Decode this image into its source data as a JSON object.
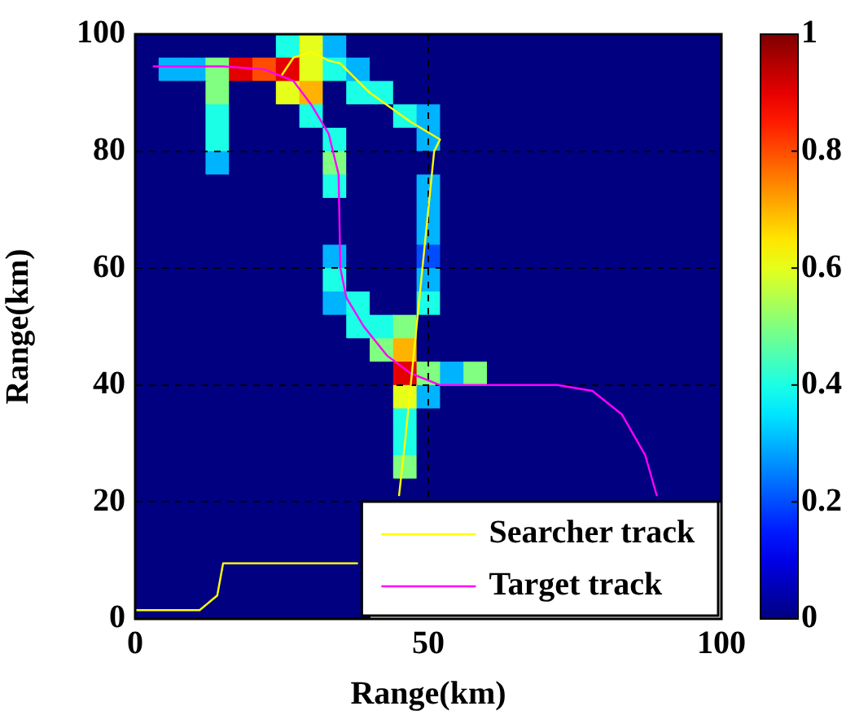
{
  "chart_data": {
    "type": "heatmap",
    "xlabel": "Range(km)",
    "ylabel": "Range(km)",
    "x": [
      2,
      6,
      10,
      14,
      18,
      22,
      26,
      30,
      34,
      38,
      42,
      46,
      50,
      54,
      58,
      62,
      66,
      70,
      74,
      78,
      82,
      86,
      90,
      94,
      98
    ],
    "y": [
      98,
      94,
      90,
      86,
      82,
      78,
      74,
      70,
      66,
      62,
      58,
      54,
      50,
      46,
      42,
      38,
      34,
      30,
      26,
      22,
      18,
      14,
      10,
      6,
      2
    ],
    "cells": [
      [
        0,
        0,
        0,
        0,
        0,
        0,
        0.4,
        0.6,
        0.3,
        0,
        0,
        0,
        0,
        0,
        0,
        0,
        0,
        0,
        0,
        0,
        0,
        0,
        0,
        0,
        0
      ],
      [
        0,
        0.3,
        0.3,
        0.5,
        0.9,
        0.8,
        0.9,
        0.6,
        0.4,
        0.3,
        0,
        0,
        0,
        0,
        0,
        0,
        0,
        0,
        0,
        0,
        0,
        0,
        0,
        0,
        0
      ],
      [
        0,
        0,
        0,
        0.5,
        0,
        0,
        0.6,
        0.7,
        0,
        0.4,
        0.4,
        0,
        0,
        0,
        0,
        0,
        0,
        0,
        0,
        0,
        0,
        0,
        0,
        0,
        0
      ],
      [
        0,
        0,
        0,
        0.4,
        0,
        0,
        0,
        0.4,
        0,
        0,
        0,
        0.4,
        0.3,
        0,
        0,
        0,
        0,
        0,
        0,
        0,
        0,
        0,
        0,
        0,
        0
      ],
      [
        0,
        0,
        0,
        0.4,
        0,
        0,
        0,
        0,
        0.4,
        0,
        0,
        0,
        0.3,
        0,
        0,
        0,
        0,
        0,
        0,
        0,
        0,
        0,
        0,
        0,
        0
      ],
      [
        0,
        0,
        0,
        0.3,
        0,
        0,
        0,
        0,
        0.5,
        0,
        0,
        0,
        0,
        0,
        0,
        0,
        0,
        0,
        0,
        0,
        0,
        0,
        0,
        0,
        0
      ],
      [
        0,
        0,
        0,
        0,
        0,
        0,
        0,
        0,
        0.4,
        0,
        0,
        0,
        0.3,
        0,
        0,
        0,
        0,
        0,
        0,
        0,
        0,
        0,
        0,
        0,
        0
      ],
      [
        0,
        0,
        0,
        0,
        0,
        0,
        0,
        0,
        0,
        0,
        0,
        0,
        0.3,
        0,
        0,
        0,
        0,
        0,
        0,
        0,
        0,
        0,
        0,
        0,
        0
      ],
      [
        0,
        0,
        0,
        0,
        0,
        0,
        0,
        0,
        0,
        0,
        0,
        0,
        0.3,
        0,
        0,
        0,
        0,
        0,
        0,
        0,
        0,
        0,
        0,
        0,
        0
      ],
      [
        0,
        0,
        0,
        0,
        0,
        0,
        0,
        0,
        0.3,
        0,
        0,
        0,
        0.2,
        0,
        0,
        0,
        0,
        0,
        0,
        0,
        0,
        0,
        0,
        0,
        0
      ],
      [
        0,
        0,
        0,
        0,
        0,
        0,
        0,
        0,
        0.4,
        0,
        0,
        0,
        0.3,
        0,
        0,
        0,
        0,
        0,
        0,
        0,
        0,
        0,
        0,
        0,
        0
      ],
      [
        0,
        0,
        0,
        0,
        0,
        0,
        0,
        0,
        0.3,
        0.4,
        0,
        0,
        0.4,
        0,
        0,
        0,
        0,
        0,
        0,
        0,
        0,
        0,
        0,
        0,
        0
      ],
      [
        0,
        0,
        0,
        0,
        0,
        0,
        0,
        0,
        0,
        0.4,
        0.4,
        0.5,
        0,
        0,
        0,
        0,
        0,
        0,
        0,
        0,
        0,
        0,
        0,
        0,
        0
      ],
      [
        0,
        0,
        0,
        0,
        0,
        0,
        0,
        0,
        0,
        0,
        0.5,
        0.7,
        0,
        0,
        0,
        0,
        0,
        0,
        0,
        0,
        0,
        0,
        0,
        0,
        0
      ],
      [
        0,
        0,
        0,
        0,
        0,
        0,
        0,
        0,
        0,
        0,
        0,
        0.9,
        0.5,
        0.3,
        0.5,
        0,
        0,
        0,
        0,
        0,
        0,
        0,
        0,
        0,
        0
      ],
      [
        0,
        0,
        0,
        0,
        0,
        0,
        0,
        0,
        0,
        0,
        0,
        0.6,
        0.3,
        0,
        0,
        0,
        0,
        0,
        0,
        0,
        0,
        0,
        0,
        0,
        0
      ],
      [
        0,
        0,
        0,
        0,
        0,
        0,
        0,
        0,
        0,
        0,
        0,
        0.4,
        0,
        0,
        0,
        0,
        0,
        0,
        0,
        0,
        0,
        0,
        0,
        0,
        0
      ],
      [
        0,
        0,
        0,
        0,
        0,
        0,
        0,
        0,
        0,
        0,
        0,
        0.4,
        0,
        0,
        0,
        0,
        0,
        0,
        0,
        0,
        0,
        0,
        0,
        0,
        0
      ],
      [
        0,
        0,
        0,
        0,
        0,
        0,
        0,
        0,
        0,
        0,
        0,
        0.5,
        0,
        0,
        0,
        0,
        0,
        0,
        0,
        0,
        0,
        0,
        0,
        0,
        0
      ],
      [
        0,
        0,
        0,
        0,
        0,
        0,
        0,
        0,
        0,
        0,
        0,
        0,
        0,
        0,
        0,
        0,
        0,
        0,
        0,
        0,
        0,
        0,
        0,
        0,
        0
      ],
      [
        0,
        0,
        0,
        0,
        0,
        0,
        0,
        0,
        0,
        0,
        null,
        null,
        null,
        null,
        null,
        null,
        null,
        null,
        null,
        null,
        null,
        null,
        null,
        null,
        null
      ],
      [
        0,
        0,
        0,
        0,
        0,
        0,
        0,
        0,
        0,
        0,
        null,
        null,
        null,
        null,
        null,
        null,
        null,
        null,
        null,
        null,
        null,
        null,
        null,
        null,
        null
      ],
      [
        0,
        0,
        0,
        0,
        0,
        0,
        0,
        0,
        0,
        0,
        null,
        null,
        null,
        null,
        null,
        null,
        null,
        null,
        null,
        null,
        null,
        null,
        null,
        null,
        null
      ],
      [
        0,
        0,
        0,
        0,
        0,
        0,
        0,
        0,
        0,
        0,
        null,
        null,
        null,
        null,
        null,
        null,
        null,
        null,
        null,
        null,
        null,
        null,
        null,
        null,
        null
      ],
      [
        0,
        0,
        0,
        0,
        0,
        0,
        0,
        0,
        0,
        0,
        null,
        null,
        null,
        null,
        null,
        null,
        null,
        null,
        null,
        null,
        null,
        null,
        null,
        null,
        null
      ]
    ],
    "clim": [
      0,
      1
    ],
    "cticks": [
      0,
      0.2,
      0.4,
      0.6,
      0.8,
      1
    ],
    "xlim": [
      0,
      100
    ],
    "xticks": [
      0,
      50,
      100
    ],
    "ylim": [
      0,
      100
    ],
    "yticks": [
      0,
      20,
      40,
      60,
      80,
      100
    ],
    "grid": true,
    "line_style": "solid",
    "legend": "bottom right",
    "series": [
      {
        "name": "Searcher track",
        "type": "line",
        "color": "#ffff00",
        "x": [
          0,
          11,
          14,
          15,
          38,
          44.5,
          45,
          46,
          47,
          48,
          49,
          50,
          51,
          52,
          47,
          40,
          35,
          33,
          30,
          27,
          25
        ],
        "values": [
          1.5,
          1.5,
          4,
          9.5,
          9.5,
          null,
          21,
          30,
          40,
          50,
          60,
          70,
          80,
          82,
          85,
          90,
          95,
          95.5,
          97,
          96,
          93
        ]
      },
      {
        "name": "Target track",
        "type": "line",
        "color": "#ff00ff",
        "x": [
          3,
          15,
          22,
          27,
          30,
          33,
          34.7,
          35,
          36,
          39,
          43,
          47,
          52,
          60,
          72,
          78,
          83,
          87,
          89
        ],
        "values": [
          94.5,
          94.5,
          94,
          92,
          88,
          83,
          76,
          60,
          55,
          50,
          45,
          42,
          40,
          40,
          40,
          39,
          35,
          28,
          21
        ]
      }
    ]
  }
}
